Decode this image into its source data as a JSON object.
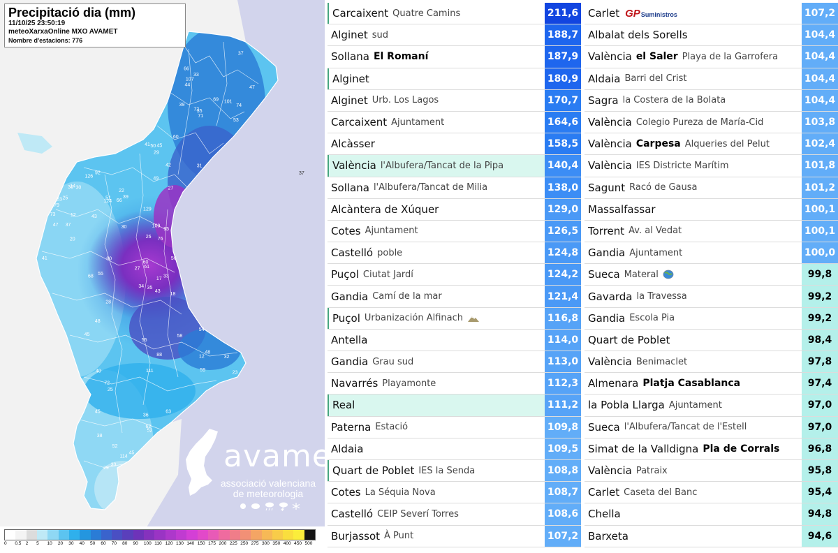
{
  "map": {
    "title": "Precipitació dia (mm)",
    "datetime": "11/10/25 23:50:19",
    "source": "meteoXarxaOnline MXO AVAMET",
    "stations": "Nombre d'estacions: 776",
    "logo_word": "avamet",
    "logo_sub1": "associació valenciana",
    "logo_sub2": "de meteorologia",
    "legend": {
      "labels": [
        "0",
        "0.5",
        "2",
        "5",
        "10",
        "20",
        "30",
        "40",
        "50",
        "60",
        "70",
        "80",
        "90",
        "100",
        "110",
        "120",
        "130",
        "140",
        "150",
        "175",
        "200",
        "225",
        "250",
        "275",
        "300",
        "350",
        "400",
        "450",
        "500"
      ],
      "colors": [
        "#ffffff",
        "#f4f4f4",
        "#dcdcdc",
        "#bfe9f6",
        "#8fd8f4",
        "#5cc4f0",
        "#2fb0ec",
        "#2496df",
        "#2a7cd6",
        "#3a63cc",
        "#4a4fc3",
        "#5a3fbb",
        "#6e33b9",
        "#8532bd",
        "#9a34c4",
        "#ad38cb",
        "#c03bd1",
        "#d43fd6",
        "#e249c9",
        "#e85ab7",
        "#ef6b9f",
        "#f07d89",
        "#f29076",
        "#f4a564",
        "#f6b956",
        "#f8cc49",
        "#fade3e",
        "#fbed3b",
        "#141414"
      ]
    },
    "value_labels": [
      "43",
      "61",
      "25",
      "33",
      "45",
      "35",
      "56",
      "20",
      "34",
      "31",
      "41",
      "27",
      "39",
      "38",
      "50",
      "47",
      "54",
      "60",
      "36",
      "26",
      "69",
      "72",
      "66",
      "43",
      "59",
      "29",
      "52",
      "48",
      "45",
      "63",
      "74",
      "80",
      "83",
      "92",
      "101",
      "107",
      "109",
      "111",
      "114",
      "124",
      "126",
      "129",
      "95",
      "88",
      "76",
      "79",
      "72",
      "71",
      "68",
      "73",
      "45",
      "40",
      "52",
      "53",
      "30",
      "29",
      "27",
      "35",
      "47",
      "37",
      "42",
      "48",
      "51",
      "32",
      "28",
      "22",
      "18",
      "12",
      "23",
      "33",
      "45",
      "62",
      "49",
      "55",
      "60",
      "58",
      "41",
      "44",
      "55",
      "66",
      "33",
      "39",
      "12",
      "14",
      "17",
      "25",
      "30",
      "36",
      "37"
    ]
  },
  "ranking_left": [
    {
      "main": "Carcaixent",
      "sub": "Quatre Camins",
      "value": "211,6",
      "bg": "#1245e0",
      "fg": "#ffffff",
      "style": "mark"
    },
    {
      "main": "Alginet",
      "sub": "sud",
      "value": "188,7",
      "bg": "#1e66ee",
      "fg": "#ffffff",
      "style": ""
    },
    {
      "main": "Sollana",
      "boldsub": "El Romaní",
      "value": "187,9",
      "bg": "#1e66ee",
      "fg": "#ffffff",
      "style": ""
    },
    {
      "main": "Alginet",
      "value": "180,9",
      "bg": "#1e66ee",
      "fg": "#ffffff",
      "style": "mark"
    },
    {
      "main": "Alginet",
      "sub": "Urb. Los Lagos",
      "value": "170,7",
      "bg": "#2a7cf2",
      "fg": "#ffffff",
      "style": ""
    },
    {
      "main": "Carcaixent",
      "sub": "Ajuntament",
      "value": "164,6",
      "bg": "#2a7cf2",
      "fg": "#ffffff",
      "style": ""
    },
    {
      "main": "Alcàsser",
      "value": "158,5",
      "bg": "#2a7cf2",
      "fg": "#ffffff",
      "style": ""
    },
    {
      "main": "València",
      "sub": "l'Albufera/Tancat de la Pipa",
      "value": "140,4",
      "bg": "#3c8df5",
      "fg": "#ffffff",
      "style": "hl"
    },
    {
      "main": "Sollana",
      "sub": "l'Albufera/Tancat de Milia",
      "value": "138,0",
      "bg": "#3c8df5",
      "fg": "#ffffff",
      "style": ""
    },
    {
      "main": "Alcàntera de Xúquer",
      "value": "129,0",
      "bg": "#4a99f6",
      "fg": "#ffffff",
      "style": ""
    },
    {
      "main": "Cotes",
      "sub": "Ajuntament",
      "value": "126,5",
      "bg": "#4a99f6",
      "fg": "#ffffff",
      "style": ""
    },
    {
      "main": "Castelló",
      "sub": "poble",
      "value": "124,8",
      "bg": "#4a99f6",
      "fg": "#ffffff",
      "style": ""
    },
    {
      "main": "Puçol",
      "sub": "Ciutat Jardí",
      "value": "124,2",
      "bg": "#4a99f6",
      "fg": "#ffffff",
      "style": ""
    },
    {
      "main": "Gandia",
      "sub": "Camí de la mar",
      "value": "121,4",
      "bg": "#4a99f6",
      "fg": "#ffffff",
      "style": ""
    },
    {
      "main": "Puçol",
      "sub": "Urbanización Alfinach",
      "value": "116,8",
      "bg": "#56a3f7",
      "fg": "#ffffff",
      "style": "mark",
      "icon": "mountain-icon"
    },
    {
      "main": "Antella",
      "value": "114,0",
      "bg": "#56a3f7",
      "fg": "#ffffff",
      "style": ""
    },
    {
      "main": "Gandia",
      "sub": "Grau sud",
      "value": "113,0",
      "bg": "#56a3f7",
      "fg": "#ffffff",
      "style": ""
    },
    {
      "main": "Navarrés",
      "sub": "Playamonte",
      "value": "112,3",
      "bg": "#56a3f7",
      "fg": "#ffffff",
      "style": ""
    },
    {
      "main": "Real",
      "value": "111,2",
      "bg": "#56a3f7",
      "fg": "#ffffff",
      "style": "hl"
    },
    {
      "main": "Paterna",
      "sub": "Estació",
      "value": "109,8",
      "bg": "#62adf8",
      "fg": "#ffffff",
      "style": ""
    },
    {
      "main": "Aldaia",
      "value": "109,5",
      "bg": "#62adf8",
      "fg": "#ffffff",
      "style": ""
    },
    {
      "main": "Quart de Poblet",
      "sub": "IES la Senda",
      "value": "108,8",
      "bg": "#62adf8",
      "fg": "#ffffff",
      "style": "mark"
    },
    {
      "main": "Cotes",
      "sub": "La Séquia Nova",
      "value": "108,7",
      "bg": "#62adf8",
      "fg": "#ffffff",
      "style": ""
    },
    {
      "main": "Castelló",
      "sub": "CEIP Severí Torres",
      "value": "108,6",
      "bg": "#62adf8",
      "fg": "#ffffff",
      "style": ""
    },
    {
      "main": "Burjassot",
      "sub": "À Punt",
      "value": "107,2",
      "bg": "#62adf8",
      "fg": "#ffffff",
      "style": ""
    }
  ],
  "ranking_right": [
    {
      "main": "Carlet",
      "gp": "GP",
      "gp_sub": "Suministros",
      "value": "107,2",
      "bg": "#62adf8",
      "fg": "#ffffff",
      "style": ""
    },
    {
      "main": "Albalat dels Sorells",
      "value": "104,4",
      "bg": "#62adf8",
      "fg": "#ffffff",
      "style": ""
    },
    {
      "main": "València",
      "boldsub": "el Saler",
      "sub": "Playa de la Garrofera",
      "value": "104,4",
      "bg": "#62adf8",
      "fg": "#ffffff",
      "style": ""
    },
    {
      "main": "Aldaia",
      "sub": "Barri del Crist",
      "value": "104,4",
      "bg": "#62adf8",
      "fg": "#ffffff",
      "style": ""
    },
    {
      "main": "Sagra",
      "sub": "la Costera de la Bolata",
      "value": "104,4",
      "bg": "#62adf8",
      "fg": "#ffffff",
      "style": ""
    },
    {
      "main": "València",
      "sub": "Colegio Pureza de María-Cid",
      "value": "103,8",
      "bg": "#62adf8",
      "fg": "#ffffff",
      "style": ""
    },
    {
      "main": "València",
      "boldsub": "Carpesa",
      "sub": "Alqueries del Pelut",
      "value": "102,4",
      "bg": "#62adf8",
      "fg": "#ffffff",
      "style": ""
    },
    {
      "main": "València",
      "sub": "IES Districte Marítim",
      "value": "101,8",
      "bg": "#62adf8",
      "fg": "#ffffff",
      "style": ""
    },
    {
      "main": "Sagunt",
      "sub": "Racó de Gausa",
      "value": "101,2",
      "bg": "#62adf8",
      "fg": "#ffffff",
      "style": ""
    },
    {
      "main": "Massalfassar",
      "value": "100,1",
      "bg": "#62adf8",
      "fg": "#ffffff",
      "style": ""
    },
    {
      "main": "Torrent",
      "sub": "Av. al Vedat",
      "value": "100,1",
      "bg": "#62adf8",
      "fg": "#ffffff",
      "style": ""
    },
    {
      "main": "Gandia",
      "sub": "Ajuntament",
      "value": "100,0",
      "bg": "#62adf8",
      "fg": "#ffffff",
      "style": ""
    },
    {
      "main": "Sueca",
      "sub": "Materal",
      "value": "99,8",
      "bg": "#b4f0ea",
      "fg": "#000000",
      "style": "",
      "icon": "globe-icon"
    },
    {
      "main": "Gavarda",
      "sub": "la Travessa",
      "value": "99,2",
      "bg": "#b4f0ea",
      "fg": "#000000",
      "style": ""
    },
    {
      "main": "Gandia",
      "sub": "Escola Pia",
      "value": "99,2",
      "bg": "#b4f0ea",
      "fg": "#000000",
      "style": ""
    },
    {
      "main": "Quart de Poblet",
      "value": "98,4",
      "bg": "#b4f0ea",
      "fg": "#000000",
      "style": ""
    },
    {
      "main": "València",
      "sub": "Benimaclet",
      "value": "97,8",
      "bg": "#b4f0ea",
      "fg": "#000000",
      "style": ""
    },
    {
      "main": "Almenara",
      "boldsub": "Platja Casablanca",
      "value": "97,4",
      "bg": "#b4f0ea",
      "fg": "#000000",
      "style": ""
    },
    {
      "main": "la Pobla Llarga",
      "sub": "Ajuntament",
      "value": "97,0",
      "bg": "#b4f0ea",
      "fg": "#000000",
      "style": ""
    },
    {
      "main": "Sueca",
      "sub": "l'Albufera/Tancat de l'Estell",
      "value": "97,0",
      "bg": "#b4f0ea",
      "fg": "#000000",
      "style": ""
    },
    {
      "main": "Simat de la Valldigna",
      "boldsub": "Pla de Corrals",
      "value": "96,8",
      "bg": "#b4f0ea",
      "fg": "#000000",
      "style": ""
    },
    {
      "main": "València",
      "sub": "Patraix",
      "value": "95,8",
      "bg": "#b4f0ea",
      "fg": "#000000",
      "style": ""
    },
    {
      "main": "Carlet",
      "sub": "Caseta del Banc",
      "value": "95,4",
      "bg": "#b4f0ea",
      "fg": "#000000",
      "style": ""
    },
    {
      "main": "Chella",
      "value": "94,8",
      "bg": "#b4f0ea",
      "fg": "#000000",
      "style": ""
    },
    {
      "main": "Barxeta",
      "value": "94,6",
      "bg": "#b4f0ea",
      "fg": "#000000",
      "style": ""
    }
  ]
}
